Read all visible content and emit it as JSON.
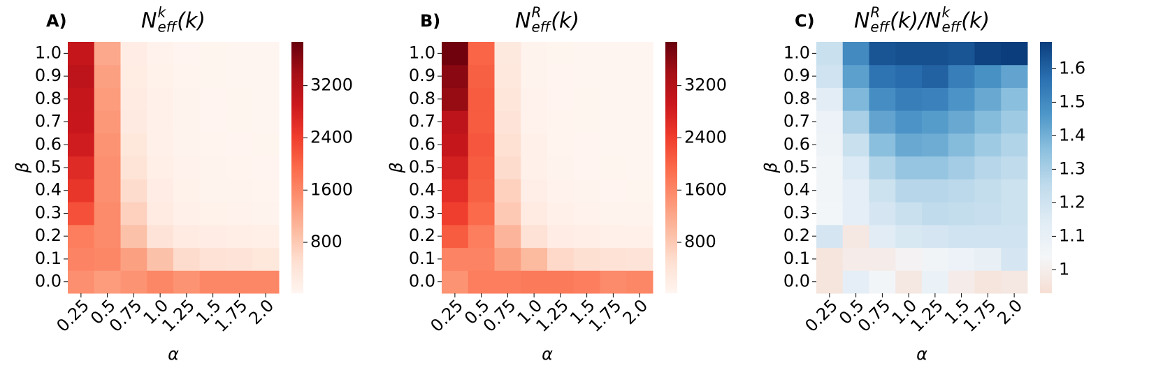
{
  "chart_data": [
    {
      "type": "heatmap",
      "panel": "A)",
      "title": [
        {
          "base": "N",
          "sub": "eff",
          "sup": "k",
          "tail": "(k)"
        }
      ],
      "xlabel": "α",
      "ylabel": "β",
      "x": [
        "0.25",
        "0.5",
        "0.75",
        "1.0",
        "1.25",
        "1.5",
        "1.75",
        "2.0"
      ],
      "y": [
        "0.0",
        "0.1",
        "0.2",
        "0.3",
        "0.4",
        "0.5",
        "0.6",
        "0.7",
        "0.8",
        "0.9",
        "1.0"
      ],
      "values": [
        [
          1500,
          1350,
          1450,
          1600,
          1450,
          1600,
          1600,
          1600
        ],
        [
          1650,
          1600,
          1300,
          900,
          550,
          450,
          400,
          350
        ],
        [
          1700,
          1550,
          900,
          400,
          250,
          200,
          180,
          160
        ],
        [
          2200,
          1550,
          700,
          260,
          140,
          100,
          80,
          70
        ],
        [
          2500,
          1500,
          550,
          200,
          100,
          70,
          60,
          50
        ],
        [
          2650,
          1500,
          420,
          160,
          80,
          60,
          50,
          40
        ],
        [
          2850,
          1450,
          350,
          140,
          70,
          50,
          40,
          30
        ],
        [
          2950,
          1400,
          280,
          120,
          60,
          40,
          30,
          25
        ],
        [
          3000,
          1350,
          250,
          110,
          60,
          40,
          30,
          25
        ],
        [
          3100,
          1300,
          230,
          100,
          50,
          30,
          25,
          20
        ],
        [
          3000,
          1200,
          200,
          80,
          40,
          30,
          20,
          20
        ]
      ],
      "clim": [
        20,
        3870
      ],
      "cticks": [
        800,
        1600,
        2400,
        3200
      ],
      "cmap": [
        "#fff5f0",
        "#fee0d2",
        "#fcbba1",
        "#fc9272",
        "#fb6a4a",
        "#ef3b2c",
        "#cb181d",
        "#a50f15",
        "#67000d"
      ]
    },
    {
      "type": "heatmap",
      "panel": "B)",
      "title": [
        {
          "base": "N",
          "sub": "eff",
          "sup": "R",
          "tail": "(k)"
        }
      ],
      "xlabel": "α",
      "ylabel": "β",
      "x": [
        "0.25",
        "0.5",
        "0.75",
        "1.0",
        "1.25",
        "1.5",
        "1.75",
        "2.0"
      ],
      "y": [
        "0.0",
        "0.1",
        "0.2",
        "0.3",
        "0.4",
        "0.5",
        "0.6",
        "0.7",
        "0.8",
        "0.9",
        "1.0"
      ],
      "values": [
        [
          1450,
          1700,
          1700,
          1750,
          1750,
          1700,
          1550,
          1600
        ],
        [
          1650,
          1650,
          1300,
          1000,
          600,
          500,
          450,
          400
        ],
        [
          2100,
          1700,
          1050,
          450,
          220,
          170,
          140,
          120
        ],
        [
          2400,
          1950,
          800,
          250,
          120,
          90,
          70,
          60
        ],
        [
          2600,
          2050,
          700,
          170,
          80,
          55,
          40,
          30
        ],
        [
          2800,
          2100,
          550,
          140,
          60,
          40,
          30,
          25
        ],
        [
          3000,
          2150,
          480,
          110,
          50,
          35,
          25,
          20
        ],
        [
          3100,
          2100,
          400,
          90,
          45,
          30,
          25,
          20
        ],
        [
          3500,
          2100,
          360,
          80,
          40,
          30,
          20,
          15
        ],
        [
          3600,
          2050,
          320,
          70,
          35,
          25,
          20,
          15
        ],
        [
          3800,
          2000,
          300,
          60,
          30,
          20,
          15,
          10
        ]
      ],
      "clim": [
        20,
        3870
      ],
      "cticks": [
        800,
        1600,
        2400,
        3200
      ],
      "cmap": [
        "#fff5f0",
        "#fee0d2",
        "#fcbba1",
        "#fc9272",
        "#fb6a4a",
        "#ef3b2c",
        "#cb181d",
        "#a50f15",
        "#67000d"
      ]
    },
    {
      "type": "heatmap",
      "panel": "C)",
      "title": [
        {
          "base": "N",
          "sub": "eff",
          "sup": "R",
          "tail": "(k)/"
        },
        {
          "base": "N",
          "sub": "eff",
          "sup": "k",
          "tail": "(k)"
        }
      ],
      "xlabel": "α",
      "ylabel": "β",
      "x": [
        "0.25",
        "0.5",
        "0.75",
        "1.0",
        "1.25",
        "1.5",
        "1.75",
        "2.0"
      ],
      "y": [
        "0.0",
        "0.1",
        "0.2",
        "0.3",
        "0.4",
        "0.5",
        "0.6",
        "0.7",
        "0.8",
        "0.9",
        "1.0"
      ],
      "values": [
        [
          0.96,
          1.12,
          1.05,
          0.97,
          1.09,
          0.99,
          0.96,
          0.97
        ],
        [
          0.96,
          0.99,
          0.99,
          1.02,
          1.06,
          1.08,
          1.1,
          1.18
        ],
        [
          1.18,
          0.97,
          1.14,
          1.17,
          1.18,
          1.2,
          1.2,
          1.2
        ],
        [
          1.04,
          1.12,
          1.18,
          1.22,
          1.25,
          1.24,
          1.23,
          1.21
        ],
        [
          1.05,
          1.12,
          1.21,
          1.27,
          1.27,
          1.26,
          1.24,
          1.21
        ],
        [
          1.05,
          1.16,
          1.28,
          1.34,
          1.34,
          1.31,
          1.27,
          1.25
        ],
        [
          1.07,
          1.22,
          1.36,
          1.42,
          1.41,
          1.37,
          1.32,
          1.28
        ],
        [
          1.08,
          1.3,
          1.43,
          1.47,
          1.45,
          1.42,
          1.37,
          1.32
        ],
        [
          1.13,
          1.38,
          1.49,
          1.53,
          1.52,
          1.47,
          1.42,
          1.36
        ],
        [
          1.2,
          1.44,
          1.56,
          1.58,
          1.6,
          1.53,
          1.48,
          1.43
        ],
        [
          1.22,
          1.5,
          1.63,
          1.64,
          1.64,
          1.63,
          1.67,
          1.68
        ]
      ],
      "clim": [
        0.93,
        1.68
      ],
      "cticks": [
        1.0,
        1.1,
        1.2,
        1.3,
        1.4,
        1.5,
        1.6
      ],
      "cmap": [
        "#f6ded3",
        "#f4f6f8",
        "#e0ecf5",
        "#c0dbec",
        "#8cc0de",
        "#4d96c8",
        "#2a6fb0",
        "#0b3d7c"
      ]
    }
  ]
}
